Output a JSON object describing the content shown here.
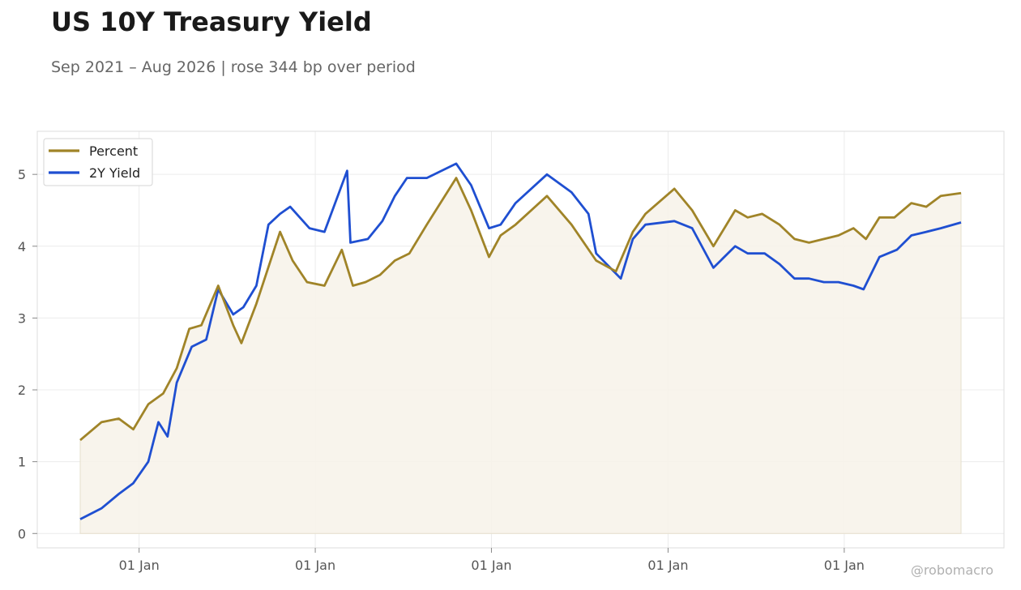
{
  "title": "US 10Y Treasury Yield",
  "subtitle": "Sep 2021 – Aug 2026 | rose 344 bp over period",
  "credit": "@robomacro",
  "colors": {
    "primary": "#a08428",
    "secondary": "#1f4fd1",
    "fill": "#f7f3ea",
    "grid": "#ececec",
    "frame": "#dddddd"
  },
  "chart_data": {
    "type": "line",
    "title": "US 10Y Treasury Yield",
    "subtitle": "Sep 2021 – Aug 2026 | rose 344 bp over period",
    "xlabel": "",
    "ylabel": "",
    "x_range": [
      "2021-09-01",
      "2026-08-31"
    ],
    "ylim": [
      -0.2,
      5.6
    ],
    "y_ticks": [
      0,
      1,
      2,
      3,
      4,
      5
    ],
    "x_ticks": [
      {
        "date": "2022-01-01",
        "label": "01 Jan"
      },
      {
        "date": "2023-01-01",
        "label": "01 Jan"
      },
      {
        "date": "2024-01-01",
        "label": "01 Jan"
      },
      {
        "date": "2025-01-01",
        "label": "01 Jan"
      },
      {
        "date": "2026-01-01",
        "label": "01 Jan"
      }
    ],
    "grid": true,
    "legend_position": "top-left",
    "series": [
      {
        "name": "Percent",
        "color": "#a08428",
        "filled": true,
        "points": [
          [
            "2021-09-01",
            1.3
          ],
          [
            "2021-10-15",
            1.55
          ],
          [
            "2021-11-20",
            1.6
          ],
          [
            "2021-12-20",
            1.45
          ],
          [
            "2022-01-20",
            1.8
          ],
          [
            "2022-02-20",
            1.95
          ],
          [
            "2022-03-20",
            2.3
          ],
          [
            "2022-04-15",
            2.85
          ],
          [
            "2022-05-10",
            2.9
          ],
          [
            "2022-06-14",
            3.45
          ],
          [
            "2022-07-15",
            2.9
          ],
          [
            "2022-08-01",
            2.65
          ],
          [
            "2022-09-01",
            3.2
          ],
          [
            "2022-10-20",
            4.2
          ],
          [
            "2022-11-15",
            3.8
          ],
          [
            "2022-12-15",
            3.5
          ],
          [
            "2023-01-20",
            3.45
          ],
          [
            "2023-02-25",
            3.95
          ],
          [
            "2023-03-20",
            3.45
          ],
          [
            "2023-04-15",
            3.5
          ],
          [
            "2023-05-15",
            3.6
          ],
          [
            "2023-06-15",
            3.8
          ],
          [
            "2023-07-15",
            3.9
          ],
          [
            "2023-08-20",
            4.3
          ],
          [
            "2023-10-20",
            4.95
          ],
          [
            "2023-11-20",
            4.5
          ],
          [
            "2023-12-27",
            3.85
          ],
          [
            "2024-01-20",
            4.15
          ],
          [
            "2024-02-20",
            4.3
          ],
          [
            "2024-04-25",
            4.7
          ],
          [
            "2024-06-15",
            4.3
          ],
          [
            "2024-08-05",
            3.8
          ],
          [
            "2024-09-15",
            3.65
          ],
          [
            "2024-10-20",
            4.2
          ],
          [
            "2024-11-15",
            4.45
          ],
          [
            "2025-01-14",
            4.8
          ],
          [
            "2025-02-20",
            4.5
          ],
          [
            "2025-04-05",
            4.0
          ],
          [
            "2025-05-20",
            4.5
          ],
          [
            "2025-06-15",
            4.4
          ],
          [
            "2025-07-15",
            4.45
          ],
          [
            "2025-08-20",
            4.3
          ],
          [
            "2025-09-20",
            4.1
          ],
          [
            "2025-10-20",
            4.05
          ],
          [
            "2025-11-20",
            4.1
          ],
          [
            "2025-12-20",
            4.15
          ],
          [
            "2026-01-20",
            4.25
          ],
          [
            "2026-02-15",
            4.1
          ],
          [
            "2026-03-15",
            4.4
          ],
          [
            "2026-04-15",
            4.4
          ],
          [
            "2026-05-20",
            4.6
          ],
          [
            "2026-06-20",
            4.55
          ],
          [
            "2026-07-20",
            4.7
          ],
          [
            "2026-08-31",
            4.74
          ]
        ]
      },
      {
        "name": "2Y Yield",
        "color": "#1f4fd1",
        "filled": false,
        "points": [
          [
            "2021-09-01",
            0.2
          ],
          [
            "2021-10-15",
            0.35
          ],
          [
            "2021-11-20",
            0.55
          ],
          [
            "2021-12-20",
            0.7
          ],
          [
            "2022-01-20",
            1.0
          ],
          [
            "2022-02-10",
            1.55
          ],
          [
            "2022-03-01",
            1.35
          ],
          [
            "2022-03-20",
            2.1
          ],
          [
            "2022-04-20",
            2.6
          ],
          [
            "2022-05-20",
            2.7
          ],
          [
            "2022-06-14",
            3.4
          ],
          [
            "2022-07-15",
            3.05
          ],
          [
            "2022-08-05",
            3.15
          ],
          [
            "2022-09-01",
            3.45
          ],
          [
            "2022-09-26",
            4.3
          ],
          [
            "2022-10-20",
            4.45
          ],
          [
            "2022-11-10",
            4.55
          ],
          [
            "2022-12-20",
            4.25
          ],
          [
            "2023-01-20",
            4.2
          ],
          [
            "2023-03-08",
            5.05
          ],
          [
            "2023-03-15",
            4.05
          ],
          [
            "2023-04-20",
            4.1
          ],
          [
            "2023-05-20",
            4.35
          ],
          [
            "2023-06-15",
            4.7
          ],
          [
            "2023-07-10",
            4.95
          ],
          [
            "2023-08-20",
            4.95
          ],
          [
            "2023-10-20",
            5.15
          ],
          [
            "2023-11-20",
            4.85
          ],
          [
            "2023-12-27",
            4.25
          ],
          [
            "2024-01-20",
            4.3
          ],
          [
            "2024-02-20",
            4.6
          ],
          [
            "2024-04-25",
            5.0
          ],
          [
            "2024-06-15",
            4.75
          ],
          [
            "2024-07-20",
            4.45
          ],
          [
            "2024-08-05",
            3.9
          ],
          [
            "2024-09-25",
            3.55
          ],
          [
            "2024-10-20",
            4.1
          ],
          [
            "2024-11-15",
            4.3
          ],
          [
            "2025-01-14",
            4.35
          ],
          [
            "2025-02-20",
            4.25
          ],
          [
            "2025-04-05",
            3.7
          ],
          [
            "2025-05-20",
            4.0
          ],
          [
            "2025-06-15",
            3.9
          ],
          [
            "2025-07-20",
            3.9
          ],
          [
            "2025-08-20",
            3.75
          ],
          [
            "2025-09-20",
            3.55
          ],
          [
            "2025-10-20",
            3.55
          ],
          [
            "2025-11-20",
            3.5
          ],
          [
            "2025-12-20",
            3.5
          ],
          [
            "2026-01-20",
            3.45
          ],
          [
            "2026-02-10",
            3.4
          ],
          [
            "2026-03-15",
            3.85
          ],
          [
            "2026-04-20",
            3.95
          ],
          [
            "2026-05-20",
            4.15
          ],
          [
            "2026-06-20",
            4.2
          ],
          [
            "2026-07-20",
            4.25
          ],
          [
            "2026-08-31",
            4.33
          ]
        ]
      }
    ]
  }
}
